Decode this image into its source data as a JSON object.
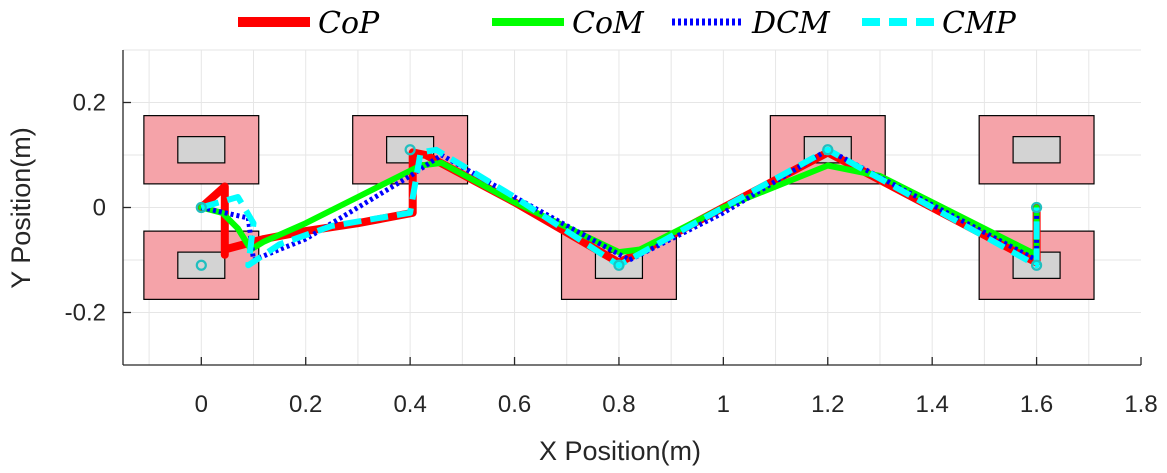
{
  "chart_data": {
    "type": "line",
    "xlabel": "X Position(m)",
    "ylabel": "Y Position(m)",
    "xlim": [
      -0.15,
      1.8
    ],
    "ylim": [
      -0.3,
      0.3
    ],
    "xticks": [
      0,
      0.2,
      0.4,
      0.6,
      0.8,
      1,
      1.2,
      1.4,
      1.6,
      1.8
    ],
    "xtick_labels": [
      "0",
      "0.2",
      "0.4",
      "0.6",
      "0.8",
      "1",
      "1.2",
      "1.4",
      "1.6",
      "1.8"
    ],
    "yticks": [
      0.2,
      0,
      -0.2
    ],
    "ytick_labels": [
      "0.2",
      "0",
      "-0.2"
    ],
    "grid": true,
    "legend_position": "top",
    "colors": {
      "support_region": "#f5a3a9",
      "foot": "#d3d3d3",
      "marker": "#1fbfbf"
    },
    "footsteps": [
      {
        "x": 0.0,
        "y": 0.11
      },
      {
        "x": 0.0,
        "y": -0.11
      },
      {
        "x": 0.4,
        "y": 0.11
      },
      {
        "x": 0.8,
        "y": -0.11
      },
      {
        "x": 1.2,
        "y": 0.11
      },
      {
        "x": 1.6,
        "y": 0.11
      },
      {
        "x": 1.6,
        "y": -0.11
      }
    ],
    "markers": [
      {
        "x": 0.0,
        "y": 0.0
      },
      {
        "x": 0.0,
        "y": -0.11
      },
      {
        "x": 0.4,
        "y": 0.11
      },
      {
        "x": 0.8,
        "y": -0.11
      },
      {
        "x": 1.2,
        "y": 0.11
      },
      {
        "x": 1.6,
        "y": -0.11
      },
      {
        "x": 1.6,
        "y": 0.0
      }
    ],
    "series": [
      {
        "name": "CoP",
        "color": "#ff0000",
        "style": "solid",
        "points": [
          [
            0.0,
            0.0
          ],
          [
            0.045,
            0.04
          ],
          [
            0.045,
            -0.09
          ],
          [
            0.045,
            -0.08
          ],
          [
            0.12,
            -0.06
          ],
          [
            0.2,
            -0.045
          ],
          [
            0.3,
            -0.03
          ],
          [
            0.405,
            -0.01
          ],
          [
            0.405,
            0.105
          ],
          [
            0.43,
            0.1
          ],
          [
            0.6,
            0.01
          ],
          [
            0.8,
            -0.105
          ],
          [
            0.85,
            -0.08
          ],
          [
            1.0,
            0.0
          ],
          [
            1.2,
            0.105
          ],
          [
            1.6,
            -0.105
          ],
          [
            1.6,
            0.0
          ]
        ]
      },
      {
        "name": "CoM",
        "color": "#00ff00",
        "style": "solid",
        "points": [
          [
            0.0,
            0.0
          ],
          [
            0.04,
            -0.01
          ],
          [
            0.07,
            -0.04
          ],
          [
            0.095,
            -0.08
          ],
          [
            0.12,
            -0.065
          ],
          [
            0.2,
            -0.03
          ],
          [
            0.3,
            0.02
          ],
          [
            0.42,
            0.08
          ],
          [
            0.46,
            0.085
          ],
          [
            0.6,
            0.01
          ],
          [
            0.8,
            -0.085
          ],
          [
            0.84,
            -0.08
          ],
          [
            1.0,
            0.0
          ],
          [
            1.2,
            0.08
          ],
          [
            1.3,
            0.06
          ],
          [
            1.6,
            -0.09
          ],
          [
            1.6,
            0.0
          ]
        ]
      },
      {
        "name": "DCM",
        "color": "#0000ff",
        "style": "dotted",
        "points": [
          [
            0.0,
            0.0
          ],
          [
            0.09,
            -0.02
          ],
          [
            0.1,
            -0.1
          ],
          [
            0.2,
            -0.06
          ],
          [
            0.4,
            0.06
          ],
          [
            0.46,
            0.1
          ],
          [
            0.6,
            0.02
          ],
          [
            0.82,
            -0.1
          ],
          [
            1.0,
            -0.01
          ],
          [
            1.2,
            0.11
          ],
          [
            1.6,
            -0.1
          ],
          [
            1.6,
            0.0
          ]
        ]
      },
      {
        "name": "CMP",
        "color": "#00ffff",
        "style": "dashed",
        "points": [
          [
            0.0,
            0.0
          ],
          [
            0.07,
            0.02
          ],
          [
            0.1,
            -0.03
          ],
          [
            0.09,
            -0.11
          ],
          [
            0.15,
            -0.07
          ],
          [
            0.25,
            -0.035
          ],
          [
            0.4,
            -0.01
          ],
          [
            0.42,
            0.105
          ],
          [
            0.45,
            0.11
          ],
          [
            0.6,
            0.02
          ],
          [
            0.8,
            -0.11
          ],
          [
            1.0,
            0.0
          ],
          [
            1.2,
            0.11
          ],
          [
            1.6,
            -0.11
          ],
          [
            1.6,
            0.0
          ]
        ]
      }
    ]
  }
}
